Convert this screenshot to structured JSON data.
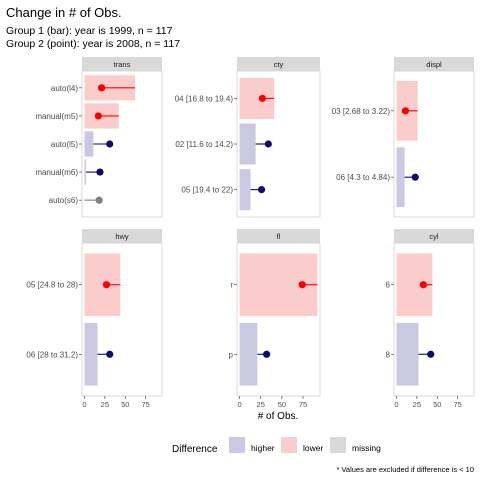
{
  "title": "Change in # of Obs.",
  "subtitle_1": "Group 1 (bar): year is 1999, n = 117",
  "subtitle_2": "Group 2 (point): year is 2008, n = 117",
  "xlabel": "# of Obs.",
  "footnote": "* Values are excluded if difference is < 10",
  "legend": {
    "title": "Difference",
    "items": [
      {
        "key": "higher",
        "label": "higher",
        "color": "#cbc9e2"
      },
      {
        "key": "lower",
        "label": "lower",
        "color": "#fbcccc"
      },
      {
        "key": "missing",
        "label": "missing",
        "color": "#d9d9d9"
      }
    ]
  },
  "colors": {
    "higher_point": "#0c0c6a",
    "lower_point": "#ff0000",
    "missing_point": "#808080",
    "strip": "#d9d9d9"
  },
  "chart_data": {
    "type": "bar",
    "xlim": [
      -3,
      95
    ],
    "x_ticks": [
      "0",
      "25",
      "50",
      "75"
    ],
    "x_tick_values": [
      0,
      25,
      50,
      75
    ],
    "panels": [
      {
        "facet": "trans",
        "rows": [
          {
            "label": "auto(l4)",
            "bar": 62,
            "point": 21,
            "status": "lower"
          },
          {
            "label": "manual(m5)",
            "bar": 42,
            "point": 17,
            "status": "lower"
          },
          {
            "label": "auto(l5)",
            "bar": 11,
            "point": 31,
            "status": "higher"
          },
          {
            "label": "manual(m6)",
            "bar": 2,
            "point": 19,
            "status": "higher"
          },
          {
            "label": "auto(s6)",
            "bar": 0,
            "point": 18,
            "status": "missing"
          }
        ]
      },
      {
        "facet": "cty",
        "rows": [
          {
            "label": "04 [16.8 to 19.4)",
            "bar": 41,
            "point": 27,
            "status": "lower"
          },
          {
            "label": "02 [11.6 to 14.2)",
            "bar": 19,
            "point": 34,
            "status": "higher"
          },
          {
            "label": "05 [19.4 to 22)",
            "bar": 13,
            "point": 26,
            "status": "higher"
          }
        ]
      },
      {
        "facet": "displ",
        "rows": [
          {
            "label": "03 [2.68 to 3.22)",
            "bar": 26,
            "point": 11,
            "status": "lower"
          },
          {
            "label": "06 [4.3 to 4.84)",
            "bar": 10,
            "point": 23,
            "status": "higher"
          }
        ]
      },
      {
        "facet": "hwy",
        "rows": [
          {
            "label": "05 [24.8 to 28)",
            "bar": 44,
            "point": 27,
            "status": "lower"
          },
          {
            "label": "06 [28 to 31.2)",
            "bar": 16,
            "point": 31,
            "status": "higher"
          }
        ]
      },
      {
        "facet": "fl",
        "rows": [
          {
            "label": "r",
            "bar": 92,
            "point": 74,
            "status": "lower"
          },
          {
            "label": "p",
            "bar": 21,
            "point": 32,
            "status": "higher"
          }
        ]
      },
      {
        "facet": "cyl",
        "rows": [
          {
            "label": "6",
            "bar": 44,
            "point": 33,
            "status": "lower"
          },
          {
            "label": "8",
            "bar": 27,
            "point": 42,
            "status": "higher"
          }
        ]
      }
    ]
  }
}
